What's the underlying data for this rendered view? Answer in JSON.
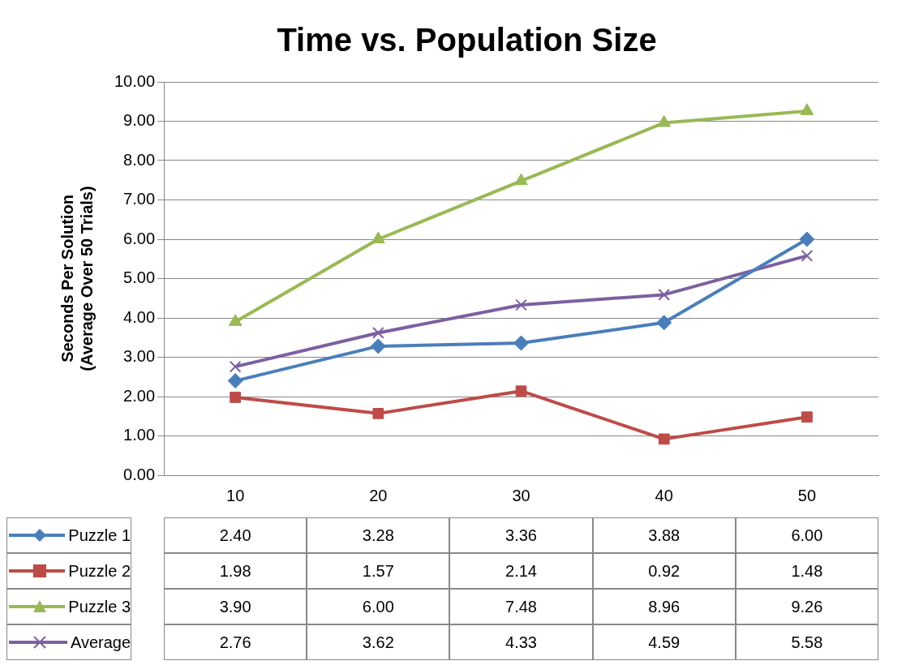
{
  "chart_data": {
    "type": "line",
    "title": "Time vs. Population Size",
    "ylabel": "Seconds Per Solution\n(Average Over 50 Trials)",
    "categories": [
      "10",
      "20",
      "30",
      "40",
      "50"
    ],
    "series": [
      {
        "name": "Puzzle 1",
        "color": "#4a7ebb",
        "marker": "diamond",
        "values": [
          2.4,
          3.28,
          3.36,
          3.88,
          6.0
        ],
        "value_labels": [
          "2.40",
          "3.28",
          "3.36",
          "3.88",
          "6.00"
        ]
      },
      {
        "name": "Puzzle 2",
        "color": "#be4b48",
        "marker": "square",
        "values": [
          1.98,
          1.57,
          2.14,
          0.92,
          1.48
        ],
        "value_labels": [
          "1.98",
          "1.57",
          "2.14",
          "0.92",
          "1.48"
        ]
      },
      {
        "name": "Puzzle 3",
        "color": "#98b954",
        "marker": "triangle",
        "values": [
          3.9,
          6.0,
          7.48,
          8.96,
          9.26
        ],
        "value_labels": [
          "3.90",
          "6.00",
          "7.48",
          "8.96",
          "9.26"
        ]
      },
      {
        "name": "Average",
        "color": "#7d60a0",
        "marker": "cross",
        "values": [
          2.76,
          3.62,
          4.33,
          4.59,
          5.58
        ],
        "value_labels": [
          "2.76",
          "3.62",
          "4.33",
          "4.59",
          "5.58"
        ]
      }
    ],
    "ylim": [
      0,
      10
    ],
    "yticks": [
      {
        "value": 0,
        "label": "0.00"
      },
      {
        "value": 1,
        "label": "1.00"
      },
      {
        "value": 2,
        "label": "2.00"
      },
      {
        "value": 3,
        "label": "3.00"
      },
      {
        "value": 4,
        "label": "4.00"
      },
      {
        "value": 5,
        "label": "5.00"
      },
      {
        "value": 6,
        "label": "6.00"
      },
      {
        "value": 7,
        "label": "7.00"
      },
      {
        "value": 8,
        "label": "8.00"
      },
      {
        "value": 9,
        "label": "9.00"
      },
      {
        "value": 10,
        "label": "10.00"
      }
    ],
    "grid": "y",
    "legend": "bottom",
    "line_style": "solid"
  }
}
